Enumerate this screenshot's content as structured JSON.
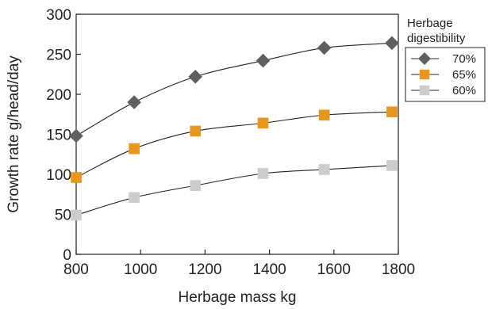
{
  "chart_data": {
    "type": "line",
    "xlabel": "Herbage mass kg",
    "ylabel": "Growth rate g/head/day",
    "xlim": [
      800,
      1800
    ],
    "ylim": [
      0,
      300
    ],
    "x_ticks": [
      "800",
      "1000",
      "1200",
      "1400",
      "1600",
      "1800"
    ],
    "y_ticks": [
      "0",
      "50",
      "100",
      "150",
      "200",
      "250",
      "300"
    ],
    "grid": false,
    "legend_title": [
      "Herbage",
      "digestibility"
    ],
    "legend_position": "top-right, outside plot",
    "x": [
      800,
      980,
      1170,
      1380,
      1570,
      1780
    ],
    "series": [
      {
        "name": "70%",
        "marker": "diamond",
        "color": "#5f5f5f",
        "values": [
          148,
          190,
          222,
          242,
          258,
          264
        ]
      },
      {
        "name": "65%",
        "marker": "square",
        "color": "#e8961e",
        "values": [
          96,
          132,
          154,
          164,
          174,
          178
        ]
      },
      {
        "name": "60%",
        "marker": "square",
        "color": "#cccccc",
        "values": [
          49,
          71,
          86,
          101,
          106,
          111
        ]
      }
    ]
  }
}
